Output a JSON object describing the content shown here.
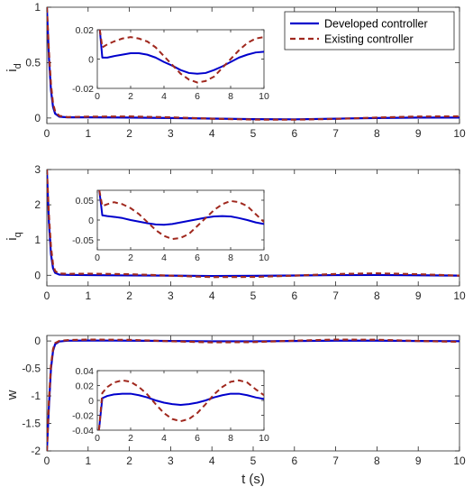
{
  "chart_data": [
    {
      "type": "line",
      "ylabel": "i",
      "ylabel_sub": "d",
      "xlim": [
        0,
        10
      ],
      "ylim": [
        -0.05,
        1
      ],
      "xticks": [
        "0",
        "1",
        "2",
        "3",
        "4",
        "5",
        "6",
        "7",
        "8",
        "9",
        "10"
      ],
      "yticks": [
        "0",
        "0.5",
        "1"
      ],
      "ytick_values": [
        0,
        0.5,
        1
      ],
      "series": [
        {
          "name": "Developed controller",
          "color": "#0000cc",
          "style": "solid",
          "x": [
            0,
            0.05,
            0.1,
            0.15,
            0.2,
            0.3,
            0.5,
            1,
            2,
            3,
            4,
            5,
            6,
            7,
            8,
            9,
            10
          ],
          "y": [
            1,
            0.55,
            0.25,
            0.1,
            0.04,
            0.012,
            0.006,
            0.006,
            0.004,
            0.0,
            -0.005,
            -0.01,
            -0.012,
            -0.006,
            0.0,
            0.004,
            0.004
          ]
        },
        {
          "name": "Existing controller",
          "color": "#a0281e",
          "style": "dashed",
          "x": [
            0,
            0.05,
            0.1,
            0.15,
            0.2,
            0.3,
            0.5,
            1,
            2,
            3,
            4,
            5,
            6,
            7,
            8,
            9,
            10
          ],
          "y": [
            1,
            0.6,
            0.3,
            0.13,
            0.06,
            0.02,
            0.008,
            0.012,
            0.014,
            0.006,
            -0.006,
            -0.014,
            -0.015,
            -0.008,
            0.004,
            0.013,
            0.015
          ]
        }
      ],
      "legend": {
        "placement": "top-right",
        "entries": [
          "Developed controller",
          "Existing controller"
        ]
      },
      "inset": {
        "xlim": [
          0,
          10
        ],
        "ylim": [
          -0.02,
          0.02
        ],
        "xticks": [
          "0",
          "2",
          "4",
          "6",
          "8",
          "10"
        ],
        "yticks": [
          "0.02",
          "0",
          "-0.02"
        ],
        "ytick_values": [
          0.02,
          0,
          -0.02
        ],
        "series": [
          {
            "x": [
              0.15,
              0.3,
              0.6,
              1,
              1.5,
              2,
              2.5,
              3,
              3.5,
              4,
              4.5,
              5,
              5.5,
              6,
              6.5,
              7,
              7.5,
              8,
              8.5,
              9,
              9.5,
              10
            ],
            "y": [
              0.02,
              0.001,
              0.001,
              0.002,
              0.003,
              0.004,
              0.004,
              0.003,
              0.001,
              -0.002,
              -0.0045,
              -0.0075,
              -0.0095,
              -0.01,
              -0.0095,
              -0.0075,
              -0.005,
              -0.002,
              0.001,
              0.003,
              0.0045,
              0.005
            ]
          },
          {
            "x": [
              0.15,
              0.3,
              0.6,
              1,
              1.5,
              2,
              2.5,
              3,
              3.5,
              4,
              4.5,
              5,
              5.5,
              6,
              6.5,
              7,
              7.5,
              8,
              8.5,
              9,
              9.5,
              10
            ],
            "y": [
              0.02,
              0.008,
              0.01,
              0.012,
              0.014,
              0.015,
              0.014,
              0.012,
              0.008,
              0.002,
              -0.004,
              -0.01,
              -0.014,
              -0.016,
              -0.015,
              -0.012,
              -0.006,
              0.0,
              0.006,
              0.011,
              0.014,
              0.015
            ]
          }
        ]
      }
    },
    {
      "type": "line",
      "ylabel": "i",
      "ylabel_sub": "q",
      "xlim": [
        0,
        10
      ],
      "ylim": [
        -0.3,
        3
      ],
      "xticks": [
        "0",
        "1",
        "2",
        "3",
        "4",
        "5",
        "6",
        "7",
        "8",
        "9",
        "10"
      ],
      "yticks": [
        "0",
        "1",
        "2",
        "3"
      ],
      "ytick_values": [
        0,
        1,
        2,
        3
      ],
      "series": [
        {
          "x": [
            0,
            0.05,
            0.1,
            0.15,
            0.2,
            0.3,
            0.5,
            1,
            2,
            3,
            4,
            5,
            6,
            7,
            8,
            9,
            10
          ],
          "y": [
            3,
            1.5,
            0.6,
            0.2,
            0.07,
            0.02,
            0.012,
            0.005,
            -0.004,
            -0.01,
            -0.02,
            -0.015,
            -0.005,
            0.005,
            0.008,
            0.0,
            -0.01
          ]
        },
        {
          "x": [
            0,
            0.05,
            0.1,
            0.15,
            0.2,
            0.3,
            0.5,
            1,
            2,
            3,
            4,
            5,
            6,
            7,
            8,
            9,
            10
          ],
          "y": [
            3,
            1.7,
            0.8,
            0.3,
            0.12,
            0.05,
            0.04,
            0.045,
            0.03,
            -0.01,
            -0.05,
            -0.045,
            -0.01,
            0.035,
            0.055,
            0.03,
            -0.01
          ]
        }
      ],
      "inset": {
        "xlim": [
          0,
          10
        ],
        "ylim": [
          -0.075,
          0.075
        ],
        "xticks": [
          "0",
          "2",
          "4",
          "6",
          "8",
          "10"
        ],
        "yticks": [
          "0.05",
          "0",
          "-0.05"
        ],
        "ytick_values": [
          0.05,
          0,
          -0.05
        ],
        "series": [
          {
            "x": [
              0.12,
              0.3,
              0.6,
              1,
              1.5,
              2,
              2.5,
              3,
              3.5,
              4,
              4.5,
              5,
              5.5,
              6,
              6.5,
              7,
              7.5,
              8,
              8.5,
              9,
              9.5,
              10
            ],
            "y": [
              0.075,
              0.012,
              0.01,
              0.008,
              0.005,
              0.0,
              -0.004,
              -0.008,
              -0.011,
              -0.012,
              -0.01,
              -0.006,
              -0.002,
              0.002,
              0.006,
              0.009,
              0.01,
              0.009,
              0.005,
              0.0,
              -0.006,
              -0.01
            ]
          },
          {
            "x": [
              0.12,
              0.3,
              0.6,
              1,
              1.5,
              2,
              2.5,
              3,
              3.5,
              4,
              4.5,
              5,
              5.5,
              6,
              6.5,
              7,
              7.5,
              8,
              8.5,
              9,
              9.5,
              10
            ],
            "y": [
              0.075,
              0.035,
              0.04,
              0.045,
              0.04,
              0.03,
              0.015,
              -0.005,
              -0.025,
              -0.04,
              -0.048,
              -0.045,
              -0.035,
              -0.015,
              0.005,
              0.025,
              0.04,
              0.048,
              0.045,
              0.035,
              0.015,
              -0.005
            ]
          }
        ]
      }
    },
    {
      "type": "line",
      "ylabel": "w",
      "xlabel": "t (s)",
      "xlim": [
        0,
        10
      ],
      "ylim": [
        -2,
        0.1
      ],
      "xticks": [
        "0",
        "1",
        "2",
        "3",
        "4",
        "5",
        "6",
        "7",
        "8",
        "9",
        "10"
      ],
      "yticks": [
        "0",
        "-0.5",
        "-1",
        "-1.5",
        "-2"
      ],
      "ytick_values": [
        0,
        -0.5,
        -1,
        -1.5,
        -2
      ],
      "series": [
        {
          "x": [
            0,
            0.05,
            0.1,
            0.15,
            0.2,
            0.3,
            0.5,
            1,
            2,
            3,
            4,
            5,
            6,
            7,
            8,
            9,
            10
          ],
          "y": [
            -2,
            -1.2,
            -0.5,
            -0.18,
            -0.06,
            -0.01,
            0.005,
            0.008,
            0.006,
            0.0,
            -0.006,
            -0.006,
            0.0,
            0.006,
            0.006,
            0.0,
            -0.004
          ]
        },
        {
          "x": [
            0,
            0.05,
            0.1,
            0.15,
            0.2,
            0.3,
            0.5,
            1,
            2,
            3,
            4,
            5,
            6,
            7,
            8,
            9,
            10
          ],
          "y": [
            -2,
            -1.1,
            -0.45,
            -0.15,
            -0.04,
            0.0,
            0.015,
            0.025,
            0.02,
            -0.005,
            -0.025,
            -0.02,
            0.005,
            0.025,
            0.022,
            0.0,
            -0.015
          ]
        }
      ],
      "inset": {
        "xlim": [
          0,
          10
        ],
        "ylim": [
          -0.04,
          0.04
        ],
        "xticks": [
          "0",
          "2",
          "4",
          "6",
          "8",
          "10"
        ],
        "yticks": [
          "0.04",
          "0.02",
          "0",
          "-0.02",
          "-0.04"
        ],
        "ytick_values": [
          0.04,
          0.02,
          0,
          -0.02,
          -0.04
        ],
        "series": [
          {
            "x": [
              0.1,
              0.3,
              0.6,
              1,
              1.5,
              2,
              2.5,
              3,
              3.5,
              4,
              4.5,
              5,
              5.5,
              6,
              6.5,
              7,
              7.5,
              8,
              8.5,
              9,
              9.5,
              10
            ],
            "y": [
              -0.04,
              0.003,
              0.006,
              0.008,
              0.009,
              0.009,
              0.007,
              0.004,
              0.0,
              -0.003,
              -0.005,
              -0.006,
              -0.005,
              -0.003,
              0.0,
              0.004,
              0.007,
              0.009,
              0.009,
              0.007,
              0.004,
              0.002
            ]
          },
          {
            "x": [
              0.1,
              0.3,
              0.6,
              1,
              1.5,
              2,
              2.5,
              3,
              3.5,
              4,
              4.5,
              5,
              5.5,
              6,
              6.5,
              7,
              7.5,
              8,
              8.5,
              9,
              9.5,
              10
            ],
            "y": [
              -0.04,
              0.01,
              0.018,
              0.024,
              0.027,
              0.025,
              0.018,
              0.008,
              -0.005,
              -0.017,
              -0.025,
              -0.028,
              -0.025,
              -0.017,
              -0.005,
              0.008,
              0.018,
              0.025,
              0.027,
              0.024,
              0.015,
              0.007
            ]
          }
        ]
      }
    }
  ]
}
